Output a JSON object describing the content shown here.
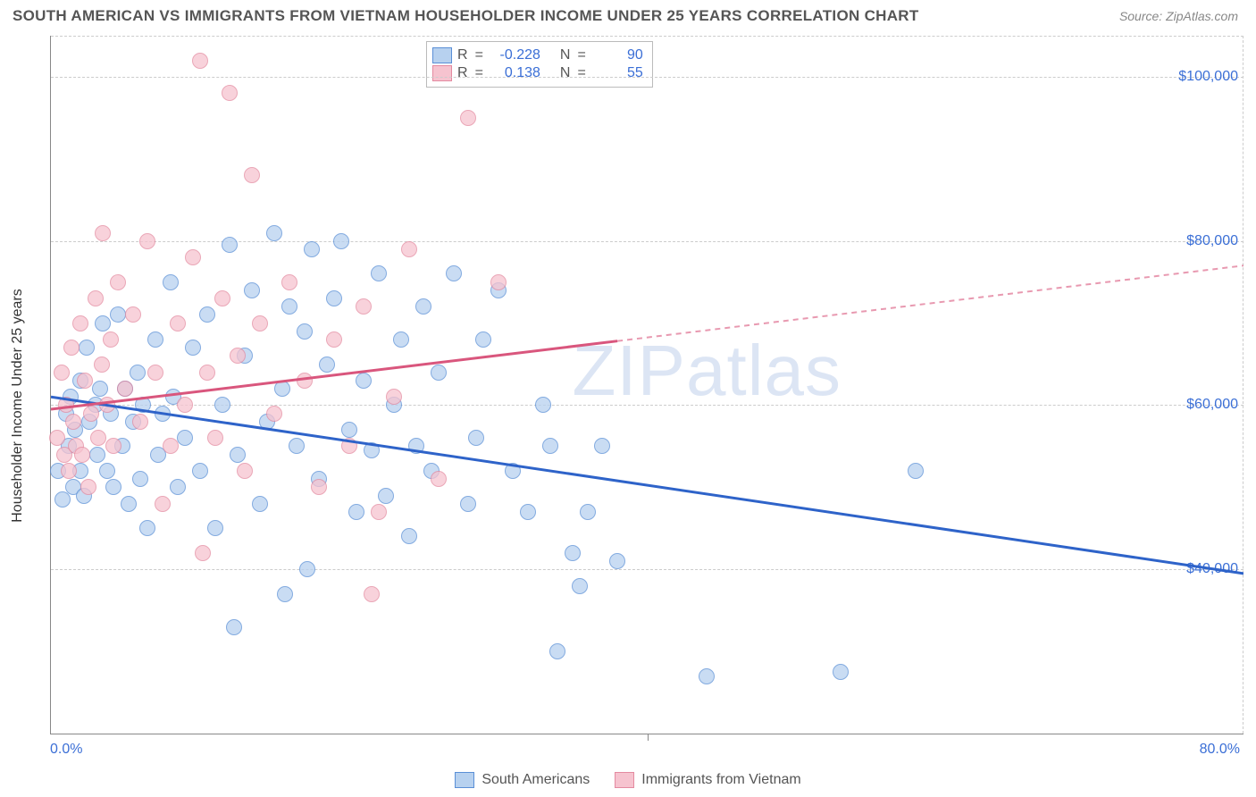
{
  "title": "SOUTH AMERICAN VS IMMIGRANTS FROM VIETNAM HOUSEHOLDER INCOME UNDER 25 YEARS CORRELATION CHART",
  "source": "Source: ZipAtlas.com",
  "watermark": "ZIPatlas",
  "y_axis_title": "Householder Income Under 25 years",
  "x_axis": {
    "min": 0.0,
    "max": 80.0,
    "ticks": [
      0.0,
      40.0,
      80.0
    ],
    "tick_labels_shown": {
      "min": "0.0%",
      "max": "80.0%"
    },
    "label_color": "#3b6fd6"
  },
  "y_axis": {
    "min": 20000,
    "max": 105000,
    "grid_values": [
      40000,
      60000,
      80000,
      100000
    ],
    "grid_labels": [
      "$40,000",
      "$60,000",
      "$80,000",
      "$100,000"
    ],
    "label_color": "#3b6fd6",
    "grid_color": "#cccccc"
  },
  "series": [
    {
      "id": "south_americans",
      "label": "South Americans",
      "fill": "#b7d1ef",
      "stroke": "#5a8fd6",
      "line_color": "#2e63c9",
      "marker_radius_px": 9,
      "stats": {
        "R": "-0.228",
        "N": "90"
      },
      "trend": {
        "y_at_xmin": 61000,
        "y_at_xmax": 39500,
        "solid_until_x": 80
      },
      "points": [
        [
          0.5,
          52000
        ],
        [
          0.8,
          48500
        ],
        [
          1.0,
          59000
        ],
        [
          1.2,
          55000
        ],
        [
          1.3,
          61000
        ],
        [
          1.5,
          50000
        ],
        [
          1.6,
          57000
        ],
        [
          2.0,
          63000
        ],
        [
          2.0,
          52000
        ],
        [
          2.2,
          49000
        ],
        [
          2.4,
          67000
        ],
        [
          2.6,
          58000
        ],
        [
          3.0,
          60000
        ],
        [
          3.1,
          54000
        ],
        [
          3.3,
          62000
        ],
        [
          3.5,
          70000
        ],
        [
          3.8,
          52000
        ],
        [
          4.0,
          59000
        ],
        [
          4.2,
          50000
        ],
        [
          4.5,
          71000
        ],
        [
          4.8,
          55000
        ],
        [
          5.0,
          62000
        ],
        [
          5.2,
          48000
        ],
        [
          5.5,
          58000
        ],
        [
          5.8,
          64000
        ],
        [
          6.0,
          51000
        ],
        [
          6.2,
          60000
        ],
        [
          6.5,
          45000
        ],
        [
          7.0,
          68000
        ],
        [
          7.2,
          54000
        ],
        [
          7.5,
          59000
        ],
        [
          8.0,
          75000
        ],
        [
          8.2,
          61000
        ],
        [
          8.5,
          50000
        ],
        [
          9.0,
          56000
        ],
        [
          9.5,
          67000
        ],
        [
          10.0,
          52000
        ],
        [
          10.5,
          71000
        ],
        [
          11.0,
          45000
        ],
        [
          11.5,
          60000
        ],
        [
          12.0,
          79500
        ],
        [
          12.5,
          54000
        ],
        [
          13.0,
          66000
        ],
        [
          13.5,
          74000
        ],
        [
          14.0,
          48000
        ],
        [
          14.5,
          58000
        ],
        [
          15.0,
          81000
        ],
        [
          15.5,
          62000
        ],
        [
          16.0,
          72000
        ],
        [
          16.5,
          55000
        ],
        [
          17.0,
          69000
        ],
        [
          17.5,
          79000
        ],
        [
          18.0,
          51000
        ],
        [
          18.5,
          65000
        ],
        [
          19.0,
          73000
        ],
        [
          19.5,
          80000
        ],
        [
          20.0,
          57000
        ],
        [
          20.5,
          47000
        ],
        [
          21.0,
          63000
        ],
        [
          21.5,
          54500
        ],
        [
          22.0,
          76000
        ],
        [
          22.5,
          49000
        ],
        [
          23.0,
          60000
        ],
        [
          23.5,
          68000
        ],
        [
          24.0,
          44000
        ],
        [
          24.5,
          55000
        ],
        [
          25.0,
          72000
        ],
        [
          25.5,
          52000
        ],
        [
          26.0,
          64000
        ],
        [
          27.0,
          76000
        ],
        [
          28.0,
          48000
        ],
        [
          28.5,
          56000
        ],
        [
          29.0,
          68000
        ],
        [
          30.0,
          74000
        ],
        [
          31.0,
          52000
        ],
        [
          32.0,
          47000
        ],
        [
          33.0,
          60000
        ],
        [
          33.5,
          55000
        ],
        [
          34.0,
          30000
        ],
        [
          35.0,
          42000
        ],
        [
          35.5,
          38000
        ],
        [
          36.0,
          47000
        ],
        [
          37.0,
          55000
        ],
        [
          38.0,
          41000
        ],
        [
          44.0,
          27000
        ],
        [
          53.0,
          27500
        ],
        [
          58.0,
          52000
        ],
        [
          12.3,
          33000
        ],
        [
          15.7,
          37000
        ],
        [
          17.2,
          40000
        ]
      ]
    },
    {
      "id": "vietnam",
      "label": "Immigrants from Vietnam",
      "fill": "#f6c3cf",
      "stroke": "#e48aa0",
      "line_color": "#d9567d",
      "marker_radius_px": 9,
      "stats": {
        "R": "0.138",
        "N": "55"
      },
      "trend": {
        "y_at_xmin": 59500,
        "y_at_xmax": 77000,
        "solid_until_x": 38
      },
      "points": [
        [
          0.4,
          56000
        ],
        [
          0.7,
          64000
        ],
        [
          0.9,
          54000
        ],
        [
          1.0,
          60000
        ],
        [
          1.2,
          52000
        ],
        [
          1.4,
          67000
        ],
        [
          1.5,
          58000
        ],
        [
          1.7,
          55000
        ],
        [
          2.0,
          70000
        ],
        [
          2.1,
          54000
        ],
        [
          2.3,
          63000
        ],
        [
          2.5,
          50000
        ],
        [
          2.7,
          59000
        ],
        [
          3.0,
          73000
        ],
        [
          3.2,
          56000
        ],
        [
          3.4,
          65000
        ],
        [
          3.5,
          81000
        ],
        [
          3.8,
          60000
        ],
        [
          4.0,
          68000
        ],
        [
          4.2,
          55000
        ],
        [
          4.5,
          75000
        ],
        [
          5.0,
          62000
        ],
        [
          5.5,
          71000
        ],
        [
          6.0,
          58000
        ],
        [
          6.5,
          80000
        ],
        [
          7.0,
          64000
        ],
        [
          7.5,
          48000
        ],
        [
          8.0,
          55000
        ],
        [
          8.5,
          70000
        ],
        [
          9.0,
          60000
        ],
        [
          9.5,
          78000
        ],
        [
          10.0,
          102000
        ],
        [
          10.5,
          64000
        ],
        [
          11.0,
          56000
        ],
        [
          11.5,
          73000
        ],
        [
          12.0,
          98000
        ],
        [
          12.5,
          66000
        ],
        [
          13.0,
          52000
        ],
        [
          13.5,
          88000
        ],
        [
          14.0,
          70000
        ],
        [
          15.0,
          59000
        ],
        [
          16.0,
          75000
        ],
        [
          17.0,
          63000
        ],
        [
          18.0,
          50000
        ],
        [
          19.0,
          68000
        ],
        [
          20.0,
          55000
        ],
        [
          21.0,
          72000
        ],
        [
          22.0,
          47000
        ],
        [
          23.0,
          61000
        ],
        [
          24.0,
          79000
        ],
        [
          26.0,
          51000
        ],
        [
          28.0,
          95000
        ],
        [
          30.0,
          75000
        ],
        [
          21.5,
          37000
        ],
        [
          10.2,
          42000
        ]
      ]
    }
  ],
  "stats_box": {
    "border_color": "#bbbbbb",
    "position_desc": "top center-left"
  },
  "colors": {
    "background": "#ffffff",
    "axis": "#888888",
    "title_text": "#555555",
    "source_text": "#888888"
  },
  "typography": {
    "title_fontsize": 17,
    "axis_label_fontsize": 16,
    "tick_fontsize": 16,
    "watermark_fontsize": 80
  },
  "chart_type": "scatter"
}
